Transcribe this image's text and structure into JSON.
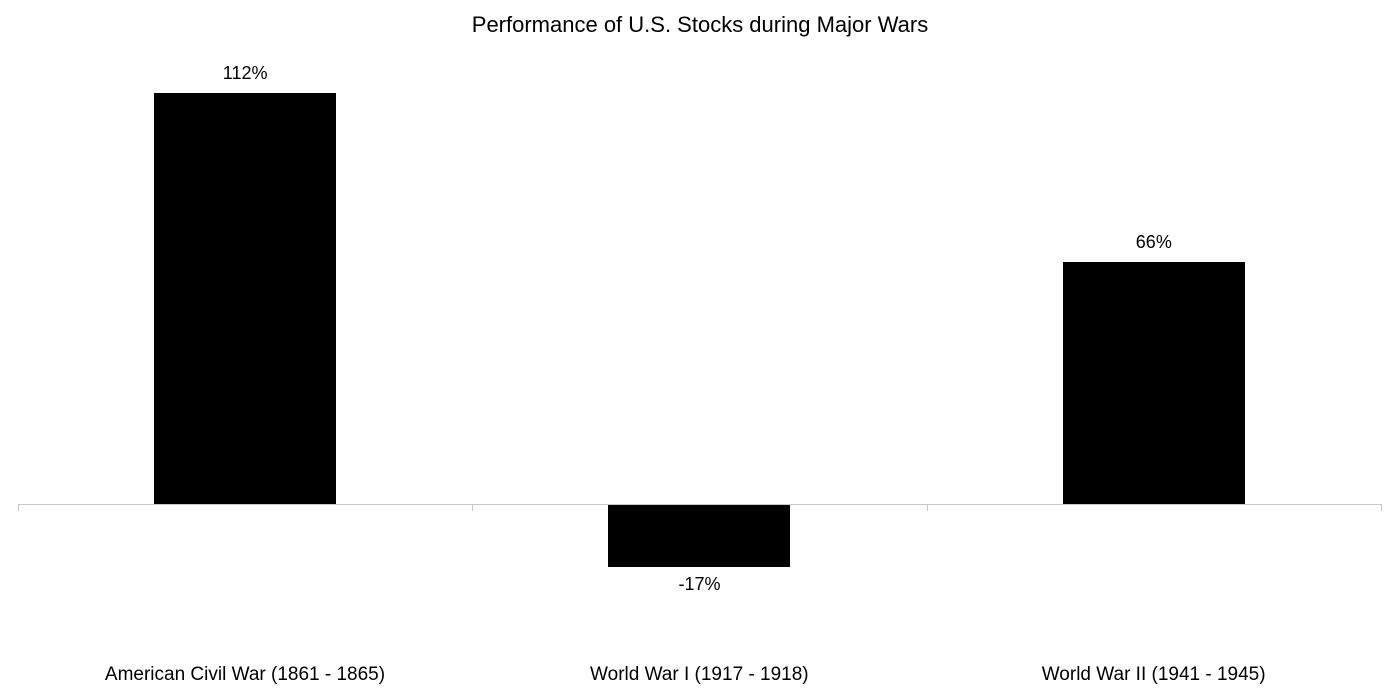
{
  "chart_data": {
    "type": "bar",
    "title": "Performance of U.S. Stocks during Major Wars",
    "categories": [
      "American Civil War (1861 - 1865)",
      "World War I (1917 - 1918)",
      "World War II (1941 - 1945)"
    ],
    "values": [
      112,
      -17,
      66
    ],
    "value_labels": [
      "112%",
      "-17%",
      "66%"
    ],
    "xlabel": "",
    "ylabel": "",
    "unit": "%",
    "grid": false,
    "legend": null,
    "bar_color": "#000000",
    "axis_color": "#c8c8c8"
  }
}
